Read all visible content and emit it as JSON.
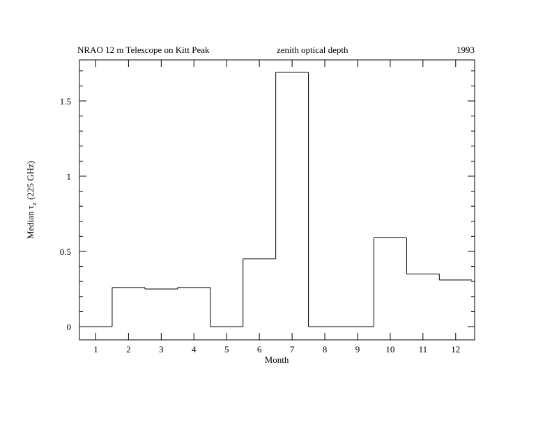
{
  "chart_data": {
    "type": "step",
    "title": "NRAO 12 m Telescope on Kitt Peak",
    "subtitle": "zenith optical depth",
    "year_label": "1993",
    "x_label": "Month",
    "y_label": {
      "prefix": "Median τ",
      "sub": "z",
      "suffix": "(225 GHz)"
    },
    "x": [
      1,
      2,
      3,
      4,
      5,
      6,
      7,
      8,
      9,
      10,
      11,
      12
    ],
    "values": [
      0,
      0.26,
      0.25,
      0.26,
      0,
      0.45,
      1.69,
      0,
      0,
      0.59,
      0.35,
      0.31
    ],
    "color": "#000000",
    "xlim": [
      0.5,
      12.58
    ],
    "ylim": [
      -0.088,
      1.773
    ],
    "xticks": [
      1,
      2,
      3,
      4,
      5,
      6,
      7,
      8,
      9,
      10,
      11,
      12
    ],
    "yticks": [
      0,
      0.5,
      1,
      1.5
    ],
    "yminorticks": [
      0.1,
      0.2,
      0.3,
      0.4,
      0.6,
      0.7,
      0.8,
      0.9,
      1.1,
      1.2,
      1.3,
      1.4,
      1.6,
      1.7
    ]
  }
}
